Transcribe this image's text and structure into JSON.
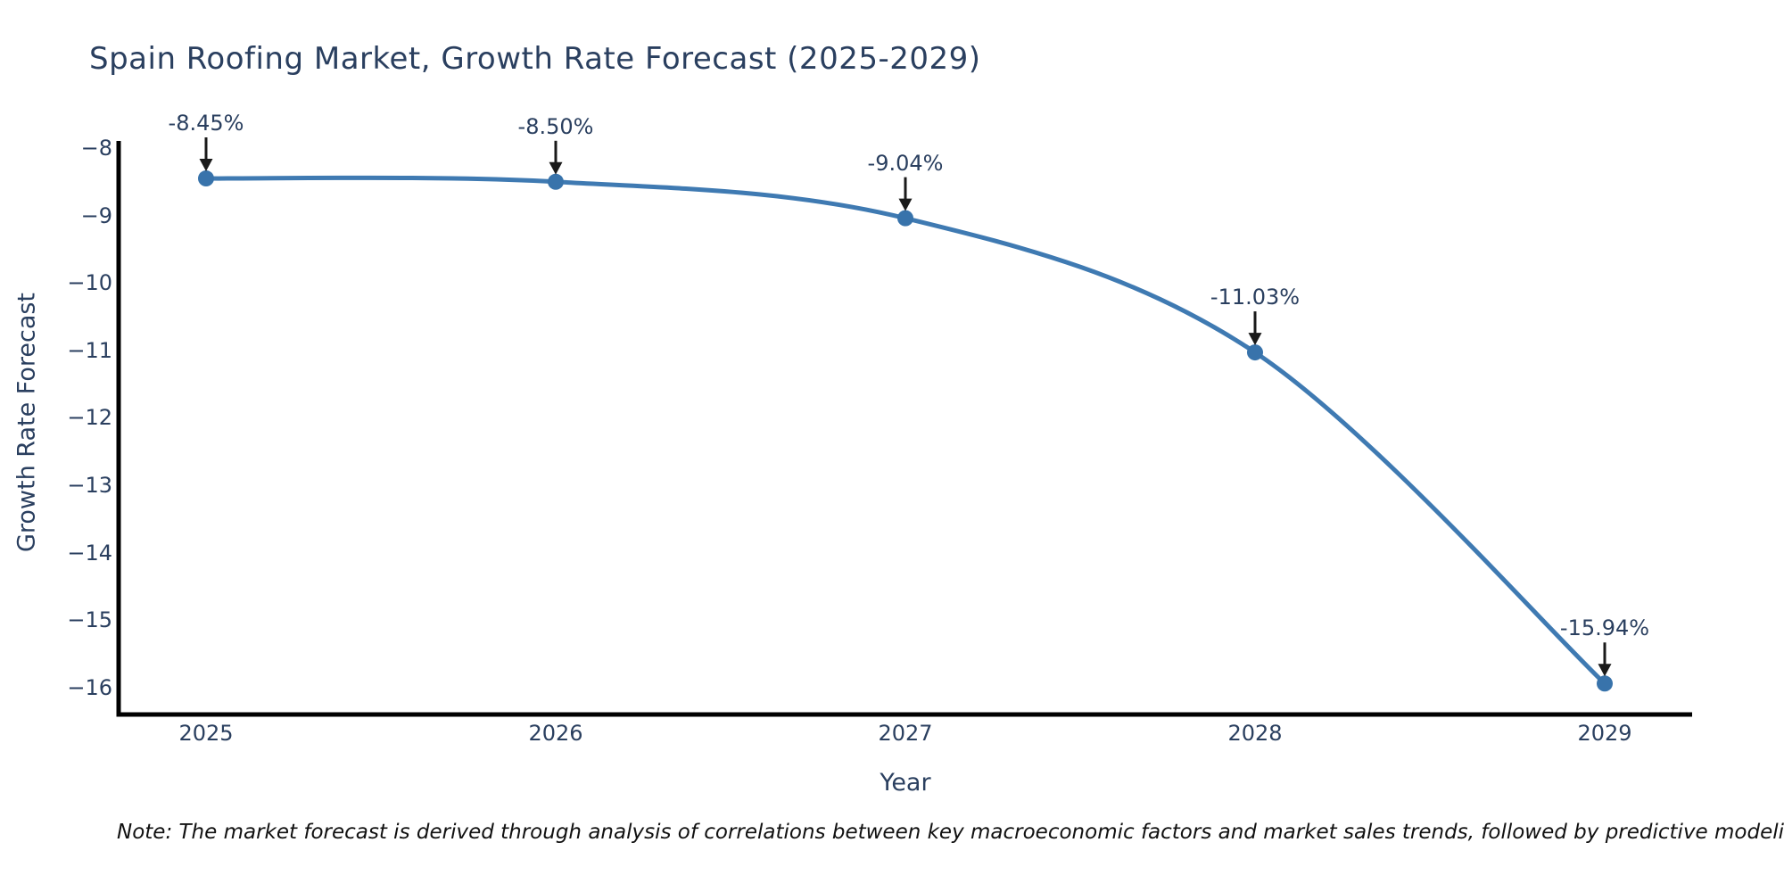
{
  "chart_data": {
    "type": "line",
    "title": "Spain Roofing Market, Growth Rate Forecast (2025-2029)",
    "xlabel": "Year",
    "ylabel": "Growth Rate Forecast",
    "x": [
      2025,
      2026,
      2027,
      2028,
      2029
    ],
    "series": [
      {
        "name": "Growth Rate Forecast",
        "values": [
          -8.45,
          -8.5,
          -9.04,
          -11.03,
          -15.94
        ]
      }
    ],
    "point_labels": [
      "-8.45%",
      "-8.50%",
      "-9.04%",
      "-11.03%",
      "-15.94%"
    ],
    "yticks": [
      -8,
      -9,
      -10,
      -11,
      -12,
      -13,
      -14,
      -15,
      -16
    ],
    "ylim": [
      -16.55,
      -7.93
    ],
    "grid": false,
    "legend": "none",
    "line_color": "#3f7ab2",
    "marker_color": "#3873ab",
    "axis_color": "#000000",
    "arrow_color": "#1a1a1a",
    "text_color": "#2a3f5f",
    "note": "Note: The market forecast is derived through analysis of correlations between key macroeconomic factors and market sales trends, followed by predictive modeling to project future sales"
  }
}
